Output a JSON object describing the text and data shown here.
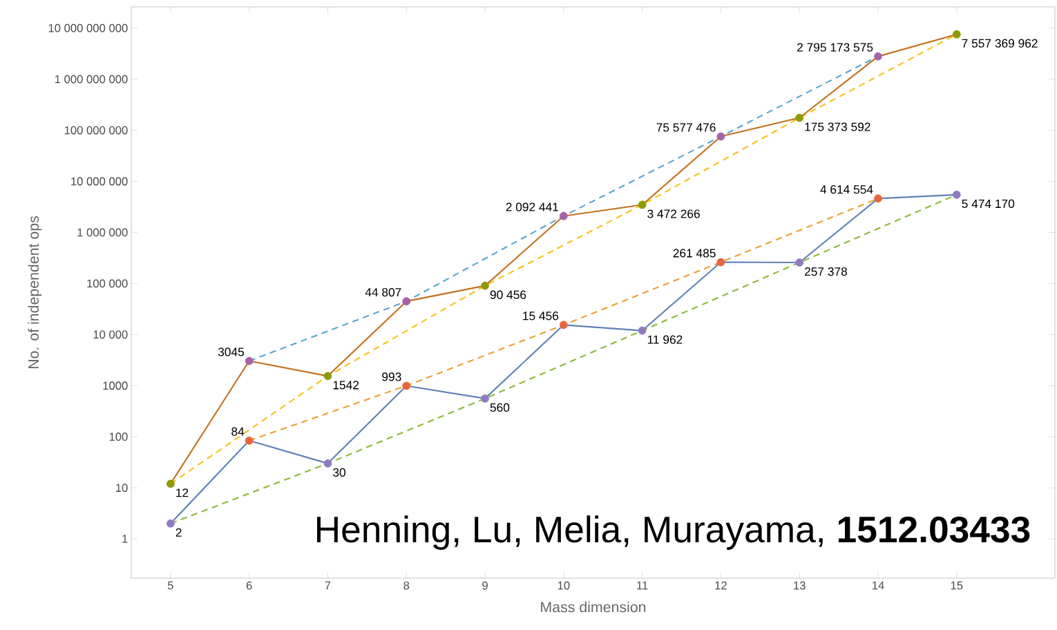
{
  "chart_data": {
    "type": "line",
    "log": "y",
    "xlabel": "Mass dimension",
    "ylabel": "No. of independent ops",
    "annotations": [
      "Henning, Lu, Melia, Murayama, **1512.03433**"
    ],
    "xlim": [
      4.5,
      16.25
    ],
    "xticks": [
      5,
      6,
      7,
      8,
      9,
      10,
      11,
      12,
      13,
      14,
      15
    ],
    "ylim": [
      0.17,
      26000000000
    ],
    "yticks": [
      1,
      10,
      100,
      1000,
      {
        "value": 10000,
        "label": "10 000"
      },
      {
        "value": 100000,
        "label": "100 000"
      },
      {
        "value": 1000000,
        "label": "1 000 000"
      },
      {
        "value": 10000000,
        "label": "10 000 000"
      },
      {
        "value": 100000000,
        "label": "100 000 000"
      },
      {
        "value": 1000000000,
        "label": "1 000 000 000"
      },
      {
        "value": 10000000000,
        "label": "10 000 000 000"
      }
    ],
    "x": [
      5,
      6,
      7,
      8,
      9,
      10,
      11,
      12,
      13,
      14,
      15
    ],
    "series": [
      {
        "line_style": "dashed",
        "color": "#5aa5cf",
        "x": [
          6,
          8,
          10,
          12,
          14
        ],
        "values": [
          3045,
          44807,
          2092441,
          75577476,
          2795173575
        ]
      },
      {
        "line_style": "dashed",
        "color": "#f7c41b",
        "x": [
          5,
          7,
          9,
          11,
          13,
          15
        ],
        "values": [
          12,
          1542,
          90456,
          3472266,
          175373592,
          7557369962
        ]
      },
      {
        "line_style": "dashed",
        "color": "#e9a232",
        "x": [
          6,
          8,
          10,
          12,
          14
        ],
        "values": [
          84,
          993,
          15456,
          261485,
          4614554
        ]
      },
      {
        "line_style": "dashed",
        "color": "#8cb83c",
        "x": [
          5,
          7,
          9,
          11,
          13,
          15
        ],
        "values": [
          2,
          30,
          560,
          11962,
          257378,
          5474170
        ]
      },
      {
        "marker": "circle",
        "line_style": "solid",
        "color": "#c4701f",
        "values": [
          12,
          3045,
          1542,
          44807,
          90456,
          2092441,
          3472266,
          75577476,
          175373592,
          2795173575,
          7557369962
        ],
        "colors": [
          "#8f9a04",
          "#a763a8",
          "#8f9a04",
          "#a763a8",
          "#8f9a04",
          "#a763a8",
          "#8f9a04",
          "#a763a8",
          "#8f9a04",
          "#a763a8",
          "#8f9a04"
        ],
        "value_labels": [
          "12",
          "3045",
          "1542",
          "44 807",
          "90 456",
          "2 092 441",
          "3 472 266",
          "75 577 476",
          "175 373 592",
          "2 795 173 575",
          "7 557 369 962"
        ]
      },
      {
        "marker": "circle",
        "line_style": "solid",
        "color": "#5f81b8",
        "values": [
          2,
          84,
          30,
          993,
          560,
          15456,
          11962,
          261485,
          257378,
          4614554,
          5474170
        ],
        "colors": [
          "#8f7cbf",
          "#e8653c",
          "#8f7cbf",
          "#e8653c",
          "#8f7cbf",
          "#e8653c",
          "#8f7cbf",
          "#e8653c",
          "#8f7cbf",
          "#e8653c",
          "#8f7cbf"
        ],
        "value_labels": [
          "2",
          "84",
          "30",
          "993",
          "560",
          "15 456",
          "11 962",
          "261 485",
          "257 378",
          "4 614 554",
          "5 474 170"
        ]
      }
    ]
  }
}
